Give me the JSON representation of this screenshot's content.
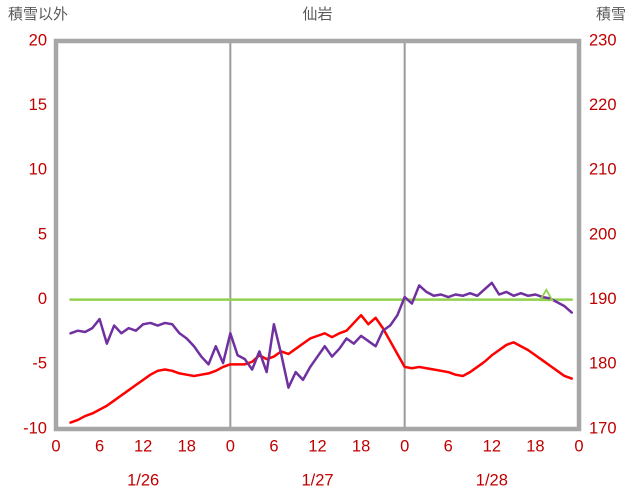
{
  "chart_data": {
    "type": "line",
    "title": "仙岩",
    "left_axis": {
      "label": "積雪以外",
      "min": -10,
      "max": 20,
      "ticks": [
        20,
        15,
        10,
        5,
        0,
        -5,
        -10
      ]
    },
    "right_axis": {
      "label": "積雪",
      "min": 170,
      "max": 230,
      "ticks": [
        230,
        220,
        210,
        200,
        190,
        180,
        170
      ]
    },
    "x_axis": {
      "min": 0,
      "max": 72,
      "tick_hours": [
        0,
        6,
        12,
        18,
        24,
        30,
        36,
        42,
        48,
        54,
        60,
        66,
        72
      ],
      "tick_labels": [
        "0",
        "6",
        "12",
        "18",
        "0",
        "6",
        "12",
        "18",
        "0",
        "6",
        "12",
        "18",
        "0"
      ],
      "day_labels": [
        "1/26",
        "1/27",
        "1/28"
      ],
      "day_label_hours": [
        12,
        36,
        60
      ],
      "day_gridlines": [
        24,
        48
      ]
    },
    "grid": "vertical-day-lines-only",
    "legend": "none",
    "series": [
      {
        "id": "green",
        "axis": "right",
        "color": "#92D050",
        "width": 2.5,
        "x": [
          2,
          71
        ],
        "values": [
          190,
          190
        ]
      },
      {
        "id": "red",
        "axis": "left",
        "color": "#FF0000",
        "width": 2.5,
        "x_start": 2,
        "x_step": 1,
        "values": [
          -9.5,
          -9.3,
          -9.0,
          -8.8,
          -8.5,
          -8.2,
          -7.8,
          -7.4,
          -7.0,
          -6.6,
          -6.2,
          -5.8,
          -5.5,
          -5.4,
          -5.5,
          -5.7,
          -5.8,
          -5.9,
          -5.8,
          -5.7,
          -5.5,
          -5.2,
          -5.0,
          -5.0,
          -5.0,
          -4.8,
          -4.3,
          -4.6,
          -4.4,
          -4.0,
          -4.2,
          -3.8,
          -3.4,
          -3.0,
          -2.8,
          -2.6,
          -2.9,
          -2.6,
          -2.4,
          -1.8,
          -1.2,
          -1.9,
          -1.4,
          -2.2,
          -3.2,
          -4.2,
          -5.2,
          -5.3,
          -5.2,
          -5.3,
          -5.4,
          -5.5,
          -5.6,
          -5.8,
          -5.9,
          -5.6,
          -5.2,
          -4.8,
          -4.3,
          -3.9,
          -3.5,
          -3.3,
          -3.6,
          -3.9,
          -4.3,
          -4.7,
          -5.1,
          -5.5,
          -5.9,
          -6.1
        ]
      },
      {
        "id": "purple",
        "axis": "left",
        "color": "#7030A0",
        "width": 2.5,
        "x_start": 2,
        "x_step": 1,
        "values": [
          -2.6,
          -2.4,
          -2.5,
          -2.2,
          -1.5,
          -3.4,
          -2.0,
          -2.6,
          -2.2,
          -2.4,
          -1.9,
          -1.8,
          -2.0,
          -1.8,
          -1.9,
          -2.6,
          -3.0,
          -3.6,
          -4.4,
          -5.0,
          -3.6,
          -4.9,
          -2.6,
          -4.3,
          -4.6,
          -5.4,
          -4.0,
          -5.6,
          -1.9,
          -4.2,
          -6.8,
          -5.6,
          -6.2,
          -5.2,
          -4.4,
          -3.6,
          -4.4,
          -3.8,
          -3.0,
          -3.4,
          -2.8,
          -3.2,
          -3.6,
          -2.4,
          -2.0,
          -1.2,
          0.2,
          -0.3,
          1.1,
          0.6,
          0.3,
          0.4,
          0.2,
          0.4,
          0.3,
          0.5,
          0.3,
          0.8,
          1.3,
          0.4,
          0.6,
          0.3,
          0.5,
          0.3,
          0.4,
          0.2,
          0.1,
          -0.2,
          -0.5,
          -1.0
        ]
      }
    ],
    "markers": [
      {
        "shape": "triangle-up-open",
        "color": "#92D050",
        "axis": "right",
        "x": 67.5,
        "value": 190.6
      }
    ],
    "colors": {
      "tick_label": "#C00000",
      "frame": "#A6A6A6",
      "gridline": "#9A9A9A",
      "title": "#595959",
      "background": "#FFFFFF"
    }
  }
}
